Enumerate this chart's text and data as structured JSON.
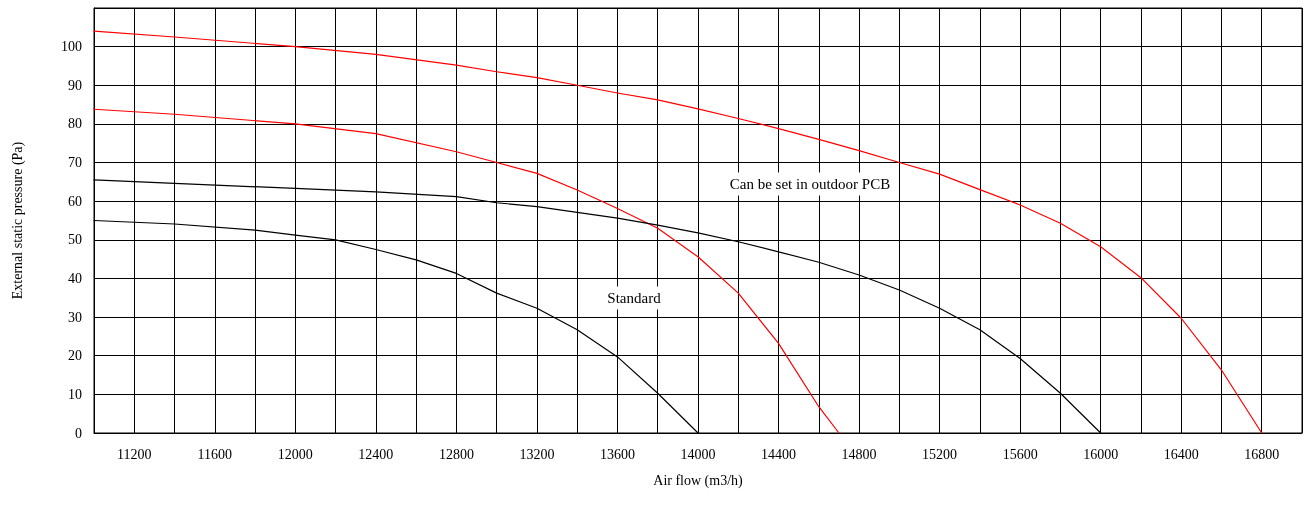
{
  "chart_data": {
    "type": "line",
    "xlabel": "Air flow (m3/h)",
    "ylabel": "External static pressure (Pa)",
    "xlim": [
      11000,
      17000
    ],
    "xticks": [
      {
        "value": 11000,
        "label": null
      },
      11200,
      {
        "value": 11400,
        "label": null
      },
      11600,
      {
        "value": 11800,
        "label": null
      },
      12000,
      {
        "value": 12200,
        "label": null
      },
      12400,
      {
        "value": 12600,
        "label": null
      },
      12800,
      {
        "value": 13000,
        "label": null
      },
      13200,
      {
        "value": 13400,
        "label": null
      },
      13600,
      {
        "value": 13800,
        "label": null
      },
      14000,
      {
        "value": 14200,
        "label": null
      },
      14400,
      {
        "value": 14600,
        "label": null
      },
      14800,
      {
        "value": 15000,
        "label": null
      },
      15200,
      {
        "value": 15400,
        "label": null
      },
      15600,
      {
        "value": 15800,
        "label": null
      },
      16000,
      {
        "value": 16200,
        "label": null
      },
      16400,
      {
        "value": 16600,
        "label": null
      },
      16800,
      {
        "value": 17000,
        "label": null
      }
    ],
    "ylim": [
      0,
      110
    ],
    "yticks": [
      0,
      10,
      20,
      30,
      40,
      50,
      60,
      70,
      80,
      90,
      100,
      {
        "value": 110,
        "label": null
      }
    ],
    "grid": true,
    "marker": "none",
    "line_style": "solid",
    "series": [
      {
        "color": "#ff0000",
        "x": [
          11000,
          11400,
          12000,
          12400,
          12800,
          13000,
          13200,
          13400,
          13600,
          13800,
          14000,
          14200,
          14400,
          14600,
          14800,
          15000,
          15200,
          15400,
          15600,
          15800,
          16000,
          16200,
          16400,
          16600,
          16800
        ],
        "values": [
          104,
          102.5,
          100,
          98,
          95.2,
          93.5,
          92,
          90,
          88,
          86.2,
          83.9,
          81.4,
          78.8,
          76,
          73.1,
          70,
          67,
          63,
          59,
          54.3,
          48.2,
          40.2,
          29.7,
          16.3,
          0
        ]
      },
      {
        "color": "#ff0000",
        "x": [
          11000,
          11400,
          12000,
          12400,
          12800,
          13000,
          13200,
          13400,
          13600,
          13800,
          14000,
          14200,
          14400,
          14600,
          14700
        ],
        "values": [
          83.8,
          82.5,
          80,
          77.5,
          72.8,
          70,
          67.2,
          62.9,
          58.1,
          53,
          45.6,
          36.2,
          23.2,
          6.8,
          0
        ]
      },
      {
        "color": "#000000",
        "x": [
          11000,
          11400,
          12000,
          12400,
          12800,
          13000,
          13200,
          13400,
          13600,
          13800,
          14000,
          14200,
          14400,
          14600,
          14800,
          15000,
          15200,
          15400,
          15600,
          15800,
          16000
        ],
        "values": [
          65.5,
          64.6,
          63.3,
          62.4,
          61.2,
          59.6,
          58.6,
          57.1,
          55.6,
          53.8,
          51.8,
          49.5,
          46.9,
          44.2,
          40.9,
          37,
          32.3,
          26.7,
          19.3,
          10.3,
          0
        ]
      },
      {
        "color": "#000000",
        "x": [
          11000,
          11400,
          11800,
          12000,
          12200,
          12400,
          12600,
          12800,
          13000,
          13200,
          13400,
          13600,
          13800,
          14000
        ],
        "values": [
          55,
          54.1,
          52.5,
          51.2,
          50,
          47.5,
          44.8,
          41.3,
          36.2,
          32.3,
          26.7,
          19.7,
          10.3,
          0
        ]
      }
    ],
    "annotations": [
      "Can be set in outdoor PCB",
      "Standard"
    ]
  }
}
